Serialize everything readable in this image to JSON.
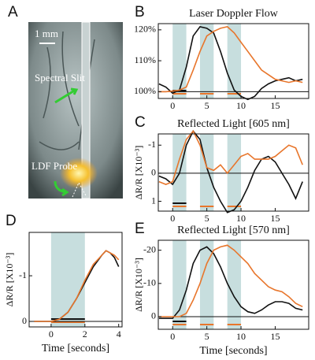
{
  "photo": {
    "label": "A",
    "scale_bar": "1 mm",
    "annotations": [
      "Spectral Slit",
      "LDF Probe"
    ]
  },
  "chart_data": [
    {
      "type": "line",
      "panel_label": "B",
      "title": "Laser Doppler Flow",
      "x": [
        -2,
        -1,
        0,
        1,
        2,
        3,
        4,
        5,
        6,
        7,
        8,
        9,
        10,
        11,
        12,
        13,
        14,
        15,
        16,
        17,
        18,
        19
      ],
      "xlim": [
        -2.1,
        19.9
      ],
      "ylim": [
        97.8,
        122
      ],
      "xticks": [
        0,
        5,
        10,
        15
      ],
      "yticks": [
        {
          "value": 100,
          "label": "100%"
        },
        {
          "value": 110,
          "label": "110%"
        },
        {
          "value": 120,
          "label": "120%"
        }
      ],
      "reference_line": 100,
      "shading": [
        [
          0,
          2
        ],
        [
          4,
          6
        ],
        [
          8,
          10
        ]
      ],
      "series": [
        {
          "color": "#111111",
          "values": [
            102.5,
            101.5,
            99.5,
            100.5,
            108,
            118,
            121,
            120.5,
            119,
            113,
            106,
            100.5,
            98.5,
            97.5,
            98.5,
            101,
            102.5,
            103.5,
            104,
            104.5,
            103.5,
            104
          ]
        },
        {
          "color": "#e8762c",
          "values": [
            100,
            100,
            100.2,
            100.5,
            101.5,
            107,
            113,
            118,
            119.5,
            120.5,
            121,
            119,
            116,
            113,
            110,
            107,
            105.5,
            104,
            103.5,
            103,
            103.5,
            103
          ]
        }
      ]
    },
    {
      "type": "line",
      "panel_label": "C",
      "title": "Reflected Light [605 nm]",
      "y_label": "ΔR/R [X10⁻³]",
      "x": [
        -2,
        -1,
        0,
        1,
        2,
        3,
        4,
        5,
        6,
        7,
        8,
        9,
        10,
        11,
        12,
        13,
        14,
        15,
        16,
        17,
        18,
        19
      ],
      "xlim": [
        -2.1,
        19.9
      ],
      "ylim": [
        1.35,
        -1.4
      ],
      "xticks": [
        0,
        5,
        10,
        15
      ],
      "yticks": [
        -1,
        0,
        1
      ],
      "reference_line": 0,
      "shading": [
        [
          0,
          2
        ],
        [
          4,
          6
        ],
        [
          8,
          10
        ]
      ],
      "series": [
        {
          "color": "#111111",
          "values": [
            0.1,
            0.2,
            0.4,
            0,
            -1,
            -1.5,
            -1.2,
            -0.2,
            0.5,
            1,
            1.4,
            1.3,
            1,
            0.5,
            -0.1,
            -0.5,
            -0.6,
            -0.4,
            0,
            0.4,
            0.9,
            0.3
          ]
        },
        {
          "color": "#e8762c",
          "values": [
            0.3,
            0.4,
            0.3,
            -0.5,
            -1.2,
            -1.5,
            -1,
            -0.2,
            -0.1,
            -0.3,
            0,
            -0.3,
            -0.6,
            -0.7,
            -0.5,
            -0.5,
            -0.5,
            -0.6,
            -0.8,
            -1,
            -0.9,
            -0.3
          ]
        }
      ]
    },
    {
      "type": "line",
      "panel_label": "D",
      "y_label": "ΔR/R [X10⁻³]",
      "x_label": "Time [seconds]",
      "x": [
        -1,
        -0.5,
        0,
        0.5,
        1,
        1.5,
        2,
        2.5,
        3,
        3.25,
        3.5,
        3.75,
        4
      ],
      "xlim": [
        -1.3,
        4.2
      ],
      "ylim": [
        0.12,
        -1.95
      ],
      "xticks": [
        0,
        2,
        4
      ],
      "yticks": [
        0,
        -1
      ],
      "reference_line": 0,
      "shading": [
        [
          0,
          2
        ]
      ],
      "series": [
        {
          "color": "#111111",
          "values": [
            0,
            0,
            0,
            -0.05,
            -0.2,
            -0.5,
            -0.85,
            -1.2,
            -1.45,
            -1.55,
            -1.5,
            -1.4,
            -1.2
          ]
        },
        {
          "color": "#e8762c",
          "values": [
            0,
            0,
            0,
            -0.05,
            -0.2,
            -0.5,
            -0.9,
            -1.25,
            -1.45,
            -1.55,
            -1.5,
            -1.45,
            -1.35
          ]
        }
      ]
    },
    {
      "type": "line",
      "panel_label": "E",
      "title": "Reflected Light [570 nm]",
      "y_label": "ΔR/R [X10⁻³]",
      "x_label": "Time [seconds]",
      "x": [
        -2,
        -1,
        0,
        1,
        2,
        3,
        4,
        5,
        6,
        7,
        8,
        9,
        10,
        11,
        12,
        13,
        14,
        15,
        16,
        17,
        18,
        19
      ],
      "xlim": [
        -2.1,
        19.9
      ],
      "ylim": [
        3.8,
        -23
      ],
      "xticks": [
        0,
        5,
        10,
        15
      ],
      "yticks": [
        -20,
        -10,
        0
      ],
      "reference_line": 0,
      "shading": [
        [
          0,
          2
        ],
        [
          4,
          6
        ],
        [
          8,
          10
        ]
      ],
      "series": [
        {
          "color": "#111111",
          "values": [
            0.5,
            0.5,
            0.5,
            -2,
            -8,
            -16,
            -20,
            -21,
            -19,
            -15,
            -10,
            -6,
            -3,
            -1.5,
            -1,
            -2,
            -3.5,
            -4.5,
            -4.5,
            -4,
            -2.5,
            -2
          ]
        },
        {
          "color": "#e8762c",
          "values": [
            0,
            0,
            0,
            0,
            -1,
            -5,
            -10,
            -16,
            -20,
            -21,
            -21.5,
            -20,
            -18,
            -16,
            -13,
            -11,
            -9,
            -8,
            -7.5,
            -6,
            -4,
            -3
          ]
        }
      ]
    }
  ]
}
